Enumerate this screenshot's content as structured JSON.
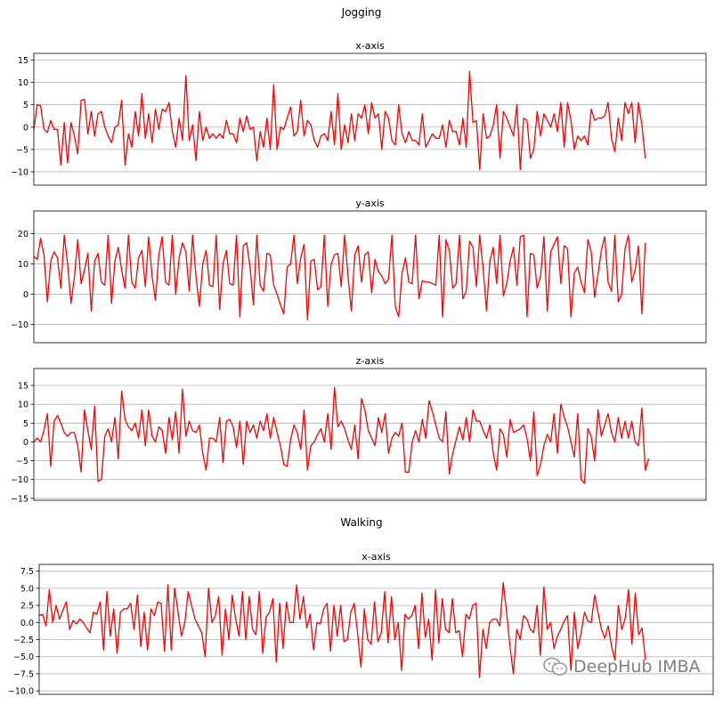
{
  "figures": [
    {
      "title": "Jogging"
    },
    {
      "title": "Walking"
    }
  ],
  "watermark": {
    "text": "DeepHub IMBA",
    "icon": "wechat-icon"
  },
  "chart_data": [
    {
      "type": "line",
      "group": "Jogging",
      "title": "x-axis",
      "color": "#ff0000",
      "xlim": [
        0,
        199
      ],
      "ylim": [
        -13,
        16.5
      ],
      "yticks": [
        -10,
        -5,
        0,
        5,
        10,
        15
      ],
      "ytick_labels": [
        "−10",
        "−5",
        "0",
        "5",
        "10",
        "15"
      ],
      "grid": "horizontal",
      "values": [
        -0.5,
        5,
        4.8,
        -0.5,
        -1.2,
        1.5,
        -0.5,
        -0.5,
        -8.5,
        1,
        -8,
        1,
        -2,
        -6,
        6,
        6.2,
        -1.5,
        3.5,
        -2,
        3,
        3.5,
        0,
        -2,
        -3.5,
        0,
        0.5,
        6,
        -8.5,
        -1.5,
        -4.5,
        3.5,
        -2,
        7.5,
        -2.5,
        3,
        -3.5,
        4,
        -0.5,
        4,
        3.5,
        5.5,
        -1,
        -4.5,
        2,
        -3,
        11.5,
        -3,
        0.5,
        -7.5,
        3.5,
        -3,
        0,
        -2.5,
        -1.5,
        -2.5,
        -1.5,
        -2.5,
        1.5,
        -1.5,
        -1.5,
        -3.5,
        2,
        -1,
        2.5,
        -0.5,
        0,
        -7.5,
        -1,
        -4.5,
        2,
        -5,
        9.5,
        -5,
        0,
        -0.5,
        2,
        4.5,
        -2,
        -1,
        6,
        -2,
        1.5,
        0.5,
        -3,
        -4.5,
        -2,
        -1.5,
        -3,
        3.5,
        -4,
        7.5,
        -5,
        0.5,
        -3.5,
        3,
        -3,
        3,
        2,
        5,
        -1.5,
        5.5,
        2,
        3,
        -5,
        3.5,
        2,
        -3,
        -4,
        5,
        -1.5,
        -3.5,
        -1,
        -3,
        -3,
        -4,
        3,
        -4.5,
        -3,
        -1.5,
        -2.5,
        -2.5,
        0.5,
        -4.5,
        1.5,
        -1,
        -1,
        -4,
        2,
        -4.5,
        12.5,
        1,
        1.5,
        -9.5,
        3,
        -2.5,
        -2,
        0.5,
        5,
        -7,
        3.5,
        2,
        0,
        -2,
        5,
        -9.5,
        2,
        1.5,
        -7,
        -5,
        3.5,
        -2,
        3,
        1.5,
        0,
        3,
        -1,
        5.5,
        -4.5,
        5.5,
        1.5,
        -5,
        -2,
        -3,
        -2,
        -4,
        4,
        1.5,
        2,
        2,
        2.5,
        5.5,
        -2.5,
        -5.5,
        2,
        -3,
        5.5,
        3,
        5.5,
        -3.5,
        5.5,
        0.5,
        -7
      ]
    },
    {
      "type": "line",
      "group": "Jogging",
      "title": "y-axis",
      "color": "#ff0000",
      "xlim": [
        0,
        199
      ],
      "ylim": [
        -16,
        27.5
      ],
      "yticks": [
        -10,
        0,
        10,
        20
      ],
      "ytick_labels": [
        "−10",
        "0",
        "10",
        "20"
      ],
      "grid": "horizontal",
      "values": [
        12.5,
        11.5,
        18.5,
        13,
        -2.5,
        11,
        14,
        12,
        2,
        19.5,
        10,
        -3,
        5.5,
        18,
        3.5,
        8,
        13.5,
        -5.5,
        11,
        13.5,
        4,
        3,
        19.5,
        -3,
        11,
        15.5,
        8,
        2,
        19.5,
        4,
        2,
        12,
        14.5,
        2.5,
        19,
        6,
        -2,
        13,
        19,
        4,
        3,
        19.5,
        0,
        12,
        17,
        14,
        1,
        19.5,
        6,
        -4,
        10,
        14.5,
        3,
        2.5,
        19.5,
        -5,
        10,
        14.5,
        3.5,
        3,
        19.5,
        -7.5,
        16,
        17,
        9,
        -3.5,
        19.5,
        3,
        1,
        13.5,
        13,
        3,
        0,
        -3.5,
        -6.5,
        9,
        10,
        19.5,
        3.5,
        12,
        16.5,
        -8.5,
        11,
        11.5,
        1.5,
        2.5,
        19.5,
        -4,
        10,
        13,
        13.5,
        2.5,
        19.5,
        6,
        -5.5,
        13,
        16,
        4,
        13,
        14,
        0.5,
        11.5,
        7.5,
        6,
        3.5,
        5,
        19.5,
        -4,
        -7.5,
        7,
        12,
        4,
        3.5,
        19.5,
        -1.5,
        4.5,
        4,
        4,
        3.5,
        3,
        19.5,
        -7.5,
        18,
        14.5,
        2,
        3.5,
        19.5,
        -1.5,
        1,
        17.5,
        15.5,
        2.5,
        19.5,
        8.5,
        -5.5,
        11,
        15.5,
        3.5,
        19.5,
        -0.5,
        3.5,
        11,
        15.5,
        3,
        19,
        19.5,
        -7.5,
        13.5,
        13,
        2,
        6,
        19,
        -5.5,
        14,
        16.5,
        19,
        3.5,
        16,
        15,
        -7.5,
        7,
        9,
        4,
        0.5,
        18,
        14,
        -1,
        6.5,
        14.5,
        19,
        4,
        1,
        19.5,
        -2.5,
        0,
        15,
        19.5,
        4,
        8,
        16,
        -6.5,
        17
      ]
    },
    {
      "type": "line",
      "group": "Jogging",
      "title": "z-axis",
      "color": "#ff0000",
      "xlim": [
        0,
        199
      ],
      "ylim": [
        -15.5,
        19.5
      ],
      "yticks": [
        -15,
        -10,
        -5,
        0,
        5,
        10,
        15
      ],
      "ytick_labels": [
        "−15",
        "−10",
        "−5",
        "0",
        "5",
        "10",
        "15"
      ],
      "grid": "horizontal",
      "values": [
        0,
        1,
        0,
        3,
        7.5,
        -6.5,
        5.5,
        7,
        5,
        2.5,
        1.5,
        2.5,
        2.5,
        -1,
        -8,
        8.5,
        3,
        -2,
        9.5,
        -10.5,
        -10,
        1.5,
        3.5,
        0,
        6.5,
        -4.5,
        13.5,
        6,
        4,
        3,
        5,
        1,
        8.5,
        -1,
        8.5,
        1.5,
        0,
        4,
        3,
        -3,
        6.5,
        0.5,
        8,
        -3,
        14,
        1.5,
        5.5,
        3,
        2.5,
        4.5,
        -3,
        -7.5,
        1,
        1,
        0,
        6.5,
        -5.5,
        5.5,
        6,
        4,
        -1.5,
        5.5,
        -6,
        5.5,
        2.5,
        4.5,
        1,
        5.5,
        3,
        7.5,
        1,
        6.5,
        2.5,
        -1,
        -6,
        -6.5,
        0.5,
        4.5,
        2.5,
        -2,
        8.5,
        -7.5,
        -1,
        0,
        2,
        3.5,
        0,
        7.5,
        -2,
        14.5,
        4,
        5.5,
        3.5,
        0.5,
        -2,
        4.5,
        -4.5,
        11.5,
        8.5,
        3,
        1,
        -1,
        6.5,
        2.5,
        7.5,
        -3,
        1,
        2.5,
        1.5,
        5,
        -8,
        -8,
        0,
        3,
        0,
        6,
        1,
        11,
        8,
        4.5,
        1,
        0,
        8,
        -8.5,
        -3,
        0.5,
        4,
        0.5,
        6.5,
        0,
        8.5,
        5.5,
        5.5,
        3,
        1,
        4.5,
        -3,
        -7.5,
        3.5,
        2,
        -4,
        6,
        2.5,
        3,
        3.5,
        4.5,
        1,
        -5,
        8,
        -9,
        -6,
        -1,
        2,
        0,
        7.5,
        -3,
        10,
        6.5,
        4,
        0,
        -4,
        7.5,
        -10,
        -11,
        3.5,
        1.5,
        -5,
        8.5,
        1.5,
        4.5,
        7.5,
        2.5,
        0,
        6.5,
        1,
        5.5,
        1,
        5.5,
        0,
        -1,
        9,
        -7.5,
        -4.5
      ]
    },
    {
      "type": "line",
      "group": "Walking",
      "title": "x-axis",
      "color": "#ff0000",
      "xlim": [
        0,
        199
      ],
      "ylim": [
        -10.5,
        8.5
      ],
      "yticks": [
        -10,
        -7.5,
        -5,
        -2.5,
        0,
        2.5,
        5,
        7.5
      ],
      "ytick_labels": [
        "−10.0",
        "−7.5",
        "−5.0",
        "−2.5",
        "0.0",
        "2.5",
        "5.0",
        "7.5"
      ],
      "grid": "horizontal",
      "values": [
        1,
        1.2,
        -0.5,
        4.8,
        0,
        2.5,
        0.5,
        1.8,
        3,
        -1,
        0.3,
        -0.2,
        0.5,
        0,
        -0.8,
        -1.5,
        1.5,
        1.2,
        3,
        -4,
        4.5,
        -2,
        2,
        -4.5,
        1.5,
        2,
        2,
        2.8,
        -1,
        4,
        -3.5,
        1.5,
        -4,
        2,
        1,
        3,
        2.8,
        -4.2,
        5.5,
        -4,
        5,
        1.5,
        -2,
        0,
        4.5,
        2.5,
        0.5,
        -0.5,
        -1.5,
        -5,
        5,
        0,
        1,
        3.8,
        -4.8,
        2,
        -2.5,
        4,
        0.5,
        -2,
        4.5,
        -2.5,
        3.8,
        -1,
        -1.8,
        4.5,
        -4.5,
        0.8,
        1.5,
        3.5,
        -5.8,
        2.8,
        -3.8,
        3,
        0,
        0,
        5.5,
        0.5,
        3.8,
        -0.8,
        1.2,
        -4,
        0,
        -0.2,
        2,
        2.8,
        -4.2,
        2.5,
        -2,
        2.5,
        -2.8,
        -2.5,
        1.5,
        2.8,
        -1.5,
        -6.5,
        2,
        -2.5,
        -3.2,
        3,
        -2.8,
        -1.5,
        4.5,
        -3,
        3.8,
        -2.5,
        0,
        -7,
        1.2,
        0.5,
        1,
        2.5,
        -3.8,
        4.3,
        -2.2,
        0.5,
        -5.5,
        4.8,
        -3,
        3.5,
        -1,
        -1.5,
        3.5,
        -1.5,
        -1.2,
        -5,
        1.2,
        0.5,
        2.5,
        2.8,
        -8,
        -1,
        -3.8,
        0,
        0.5,
        0.5,
        -0.5,
        5.8,
        1.5,
        -3.5,
        -7.5,
        -1,
        -2.5,
        1,
        0.5,
        -1,
        -1.5,
        2.5,
        -4.8,
        5.2,
        -1,
        0,
        -3.8,
        -2,
        -1,
        0.2,
        1,
        -7,
        1.5,
        -3.8,
        -1.5,
        1.5,
        0.2,
        0,
        4,
        1.5,
        -1,
        -2.3,
        -0.5,
        -3.5,
        -5.5,
        2.5,
        -1,
        0.5,
        4.8,
        -3.2,
        4.3,
        -1.8,
        -0.8,
        -5.5
      ]
    }
  ]
}
